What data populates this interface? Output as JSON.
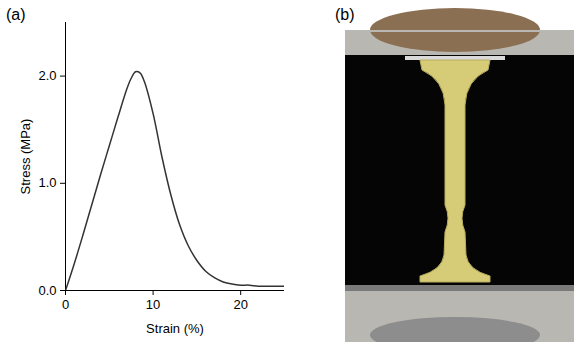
{
  "chart_data": {
    "type": "line",
    "panel_label": "(a)",
    "x_label": "Strain (%)",
    "y_label": "Stress (MPa)",
    "x": [
      0,
      1,
      2,
      3,
      4,
      5,
      6,
      7,
      7.5,
      8,
      8.5,
      9,
      10,
      11,
      12,
      13,
      14,
      15,
      16,
      17,
      18,
      19,
      20,
      21,
      22,
      23,
      24,
      25
    ],
    "series": [
      {
        "name": "Stress",
        "color": "#333333",
        "values": [
          0,
          0.25,
          0.52,
          0.8,
          1.08,
          1.35,
          1.62,
          1.88,
          1.98,
          2.04,
          2.03,
          1.95,
          1.65,
          1.25,
          0.9,
          0.62,
          0.42,
          0.28,
          0.18,
          0.12,
          0.08,
          0.06,
          0.05,
          0.05,
          0.04,
          0.04,
          0.04,
          0.04
        ]
      }
    ],
    "xlim": [
      0,
      25
    ],
    "ylim": [
      0,
      2.5
    ],
    "xticks": [
      0,
      10,
      20
    ],
    "yticks": [
      0,
      1,
      2
    ],
    "grid": false
  },
  "photo": {
    "panel_label": "(b)"
  }
}
